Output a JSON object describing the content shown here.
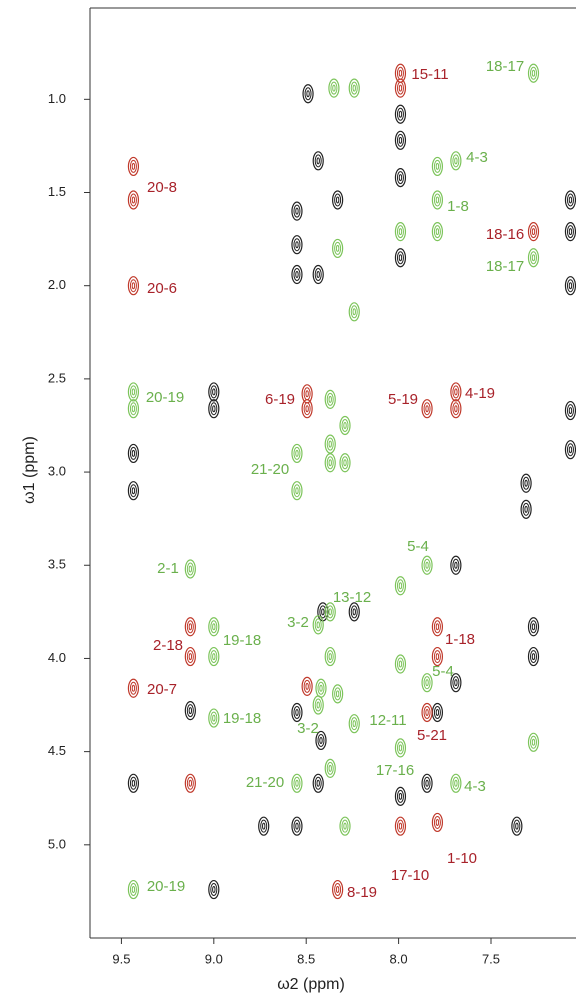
{
  "chart_data": {
    "type": "scatter",
    "x_label": "ω2 (ppm)",
    "y_label": "ω1 (ppm)",
    "xlim": [
      9.67,
      7.04
    ],
    "ylim": [
      0.51,
      5.5
    ],
    "xticks": [
      9.5,
      {
        "value": 9,
        "label": "9.0"
      },
      8.5,
      {
        "value": 8,
        "label": "8.0"
      },
      7.5
    ],
    "yticks": [
      {
        "value": 1,
        "label": "1.0"
      },
      1.5,
      {
        "value": 2,
        "label": "2.0"
      },
      2.5,
      {
        "value": 3,
        "label": "3.0"
      },
      3.5,
      {
        "value": 4,
        "label": "4.0"
      },
      4.5,
      {
        "value": 5,
        "label": "5.0"
      }
    ],
    "series": [
      {
        "color": "#222222",
        "x": [
          9.435,
          9.435,
          9.435,
          9.0,
          9.0,
          9.127,
          9.0,
          8.49,
          8.435,
          8.33,
          8.55,
          8.55,
          8.55,
          8.435,
          7.99,
          7.99,
          7.99,
          7.99,
          7.07,
          7.07,
          7.07,
          8.41,
          8.24,
          7.69,
          7.79,
          7.69,
          8.55,
          8.42,
          8.435,
          7.846,
          7.99,
          8.73,
          8.55,
          7.27,
          7.27,
          7.31,
          7.31,
          7.07,
          7.07,
          7.36
        ],
        "y": [
          2.9,
          3.1,
          4.67,
          2.57,
          2.66,
          4.28,
          5.24,
          0.97,
          1.33,
          1.54,
          1.6,
          1.78,
          1.94,
          1.94,
          1.08,
          1.22,
          1.42,
          1.85,
          2.0,
          1.71,
          1.54,
          3.75,
          3.75,
          3.5,
          4.29,
          4.13,
          4.29,
          4.44,
          4.67,
          4.67,
          4.74,
          4.9,
          4.9,
          3.83,
          3.99,
          3.06,
          3.2,
          2.67,
          2.88,
          4.9
        ]
      },
      {
        "color": "#7cc45a",
        "x": [
          7.27,
          8.35,
          8.24,
          7.79,
          7.69,
          7.79,
          7.79,
          7.99,
          8.33,
          7.27,
          8.24,
          9.435,
          9.435,
          8.37,
          8.29,
          8.55,
          8.55,
          8.37,
          8.37,
          8.29,
          9.127,
          7.846,
          7.99,
          8.37,
          8.435,
          9.0,
          9.0,
          8.37,
          7.99,
          7.846,
          8.42,
          8.33,
          8.435,
          9.0,
          8.24,
          7.27,
          7.99,
          8.55,
          8.37,
          7.69,
          8.29,
          9.435
        ],
        "y": [
          0.86,
          0.94,
          0.94,
          1.36,
          1.33,
          1.54,
          1.71,
          1.71,
          1.8,
          1.85,
          2.14,
          2.57,
          2.66,
          2.61,
          2.75,
          2.9,
          3.1,
          2.85,
          2.95,
          2.95,
          3.52,
          3.5,
          3.61,
          3.75,
          3.82,
          3.83,
          3.99,
          3.99,
          4.03,
          4.13,
          4.16,
          4.19,
          4.25,
          4.32,
          4.35,
          4.45,
          4.48,
          4.67,
          4.59,
          4.67,
          4.9,
          5.24
        ]
      },
      {
        "color": "#c0392b",
        "x": [
          9.435,
          9.435,
          9.435,
          9.127,
          9.127,
          9.435,
          9.127,
          8.495,
          8.495,
          7.99,
          7.99,
          7.846,
          7.69,
          7.69,
          7.27,
          7.79,
          7.79,
          8.495,
          7.846,
          7.99,
          7.79,
          8.33
        ],
        "y": [
          1.36,
          1.54,
          2.0,
          3.83,
          3.99,
          4.16,
          4.67,
          2.66,
          2.58,
          0.86,
          0.94,
          2.66,
          2.57,
          2.66,
          1.71,
          3.83,
          3.99,
          4.15,
          4.29,
          4.9,
          4.88,
          5.24
        ]
      }
    ],
    "annotations": [
      {
        "text": "15-11",
        "color": "#a8222a"
      },
      {
        "text": "20-8",
        "color": "#a8222a"
      },
      {
        "text": "20-6",
        "color": "#a8222a"
      },
      {
        "text": "18-16",
        "color": "#a8222a"
      },
      {
        "text": "6-19",
        "color": "#a8222a"
      },
      {
        "text": "5-19",
        "color": "#a8222a"
      },
      {
        "text": "4-19",
        "color": "#a8222a"
      },
      {
        "text": "2-18",
        "color": "#a8222a"
      },
      {
        "text": "1-18",
        "color": "#a8222a"
      },
      {
        "text": "20-7",
        "color": "#a8222a"
      },
      {
        "text": "5-21",
        "color": "#a8222a"
      },
      {
        "text": "1-10",
        "color": "#a8222a"
      },
      {
        "text": "17-10",
        "color": "#a8222a"
      },
      {
        "text": "8-19",
        "color": "#a8222a"
      },
      {
        "text": "18-17",
        "color": "#6ab04c"
      },
      {
        "text": "4-3",
        "color": "#6ab04c"
      },
      {
        "text": "1-8",
        "color": "#6ab04c"
      },
      {
        "text": "18-17",
        "color": "#6ab04c"
      },
      {
        "text": "20-19",
        "color": "#6ab04c"
      },
      {
        "text": "21-20",
        "color": "#6ab04c"
      },
      {
        "text": "2-1",
        "color": "#6ab04c"
      },
      {
        "text": "5-4",
        "color": "#6ab04c"
      },
      {
        "text": "13-12",
        "color": "#6ab04c"
      },
      {
        "text": "3-2",
        "color": "#6ab04c"
      },
      {
        "text": "19-18",
        "color": "#6ab04c"
      },
      {
        "text": "5-4",
        "color": "#6ab04c"
      },
      {
        "text": "19-18",
        "color": "#6ab04c"
      },
      {
        "text": "12-11",
        "color": "#6ab04c"
      },
      {
        "text": "3-2",
        "color": "#6ab04c"
      },
      {
        "text": "17-16",
        "color": "#6ab04c"
      },
      {
        "text": "21-20",
        "color": "#6ab04c"
      },
      {
        "text": "4-3",
        "color": "#6ab04c"
      },
      {
        "text": "20-19",
        "color": "#6ab04c"
      }
    ]
  }
}
